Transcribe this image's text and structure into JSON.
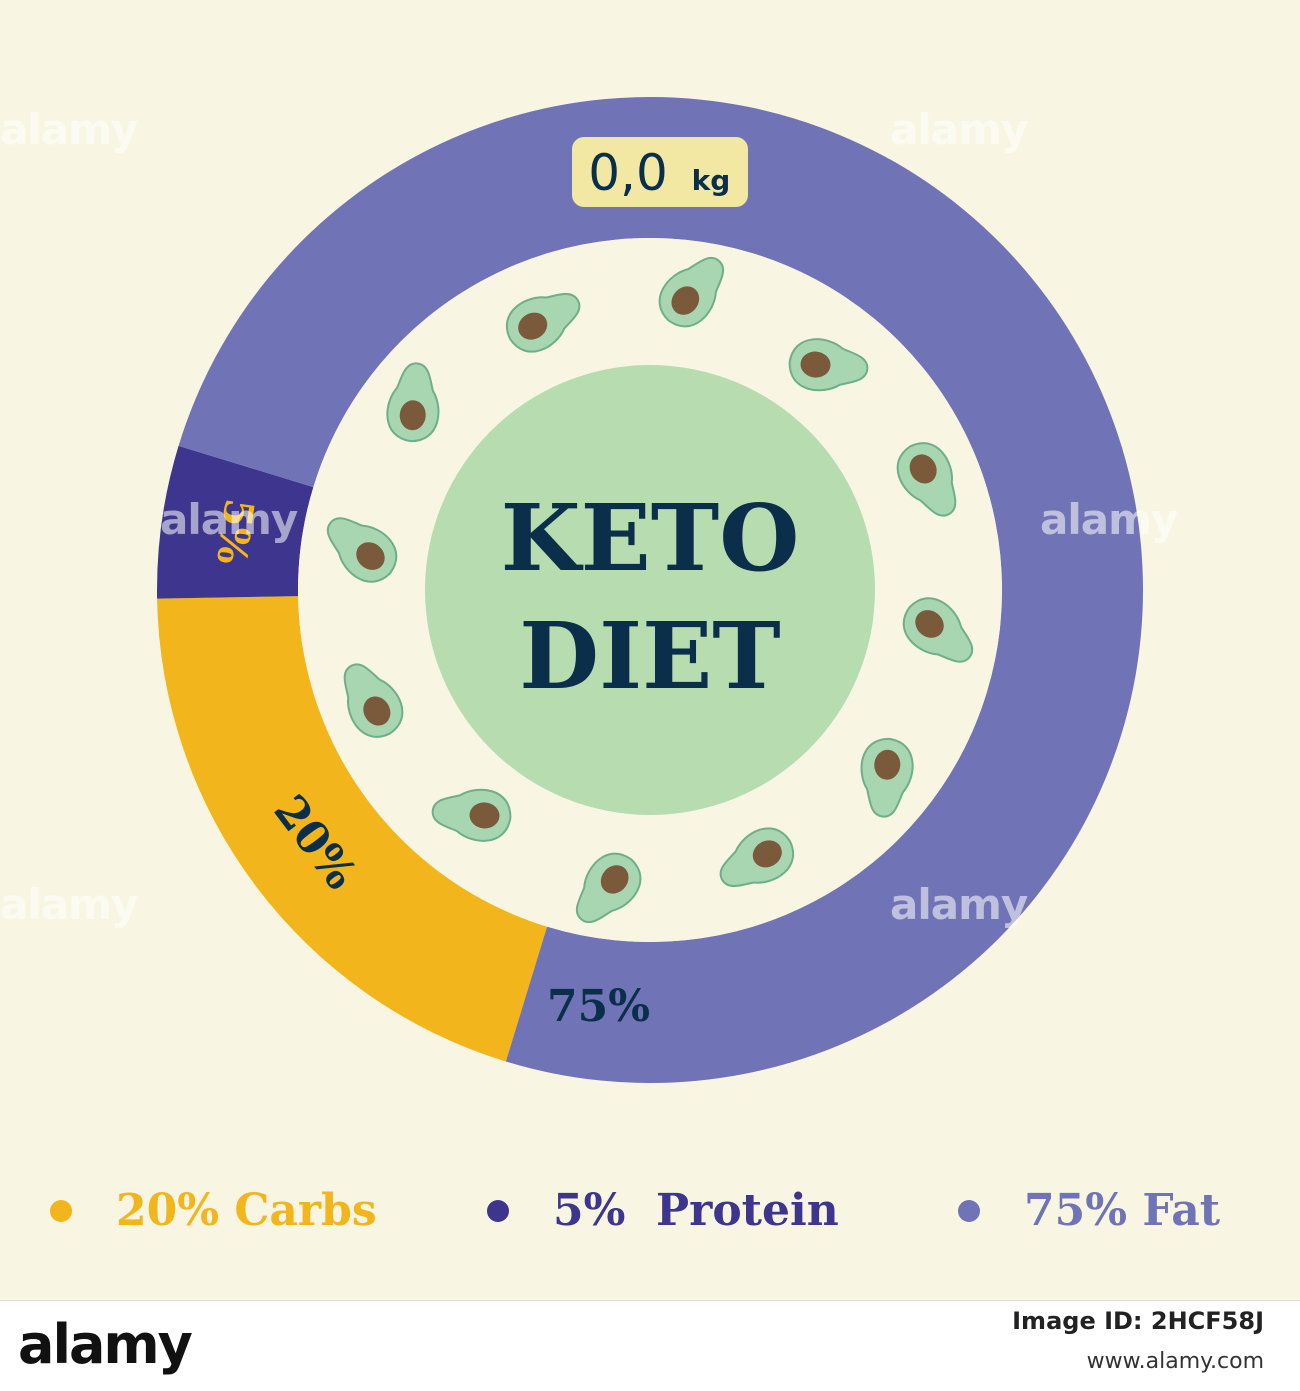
{
  "chart_data": {
    "type": "pie",
    "title": "KETO DIET",
    "center_text": [
      "KETO",
      "DIET"
    ],
    "weight_label": {
      "value": "0,0",
      "unit": "kg"
    },
    "slices": [
      {
        "label": "Carbs",
        "value": 20,
        "display": "20%",
        "color": "#f2b51b",
        "text_color": "#0b2e4a"
      },
      {
        "label": "Protein",
        "value": 5,
        "display": "5%",
        "color": "#3d358e",
        "text_color": "#f2b51b"
      },
      {
        "label": "Fat",
        "value": 75,
        "display": "75%",
        "color": "#7073b6",
        "text_color": "#0b2e4a"
      }
    ],
    "legend": [
      {
        "text": "20% Carbs",
        "color": "#f2b51b"
      },
      {
        "text": "5%  Protein",
        "color": "#3d358e"
      },
      {
        "text": "75% Fat",
        "color": "#7073b6"
      }
    ]
  },
  "colors": {
    "background": "#f8f6e3",
    "inner_circle": "#b6dcb0",
    "avocado_skin": "#a8d6b0",
    "avocado_pit": "#7b5a3c",
    "weight_badge": "#f2e8a4",
    "text_dark": "#0b2e4a"
  },
  "watermark": {
    "text": "alamy",
    "footer_logo": "alamy",
    "image_id": "Image ID: 2HCF58J",
    "url": "www.alamy.com"
  }
}
